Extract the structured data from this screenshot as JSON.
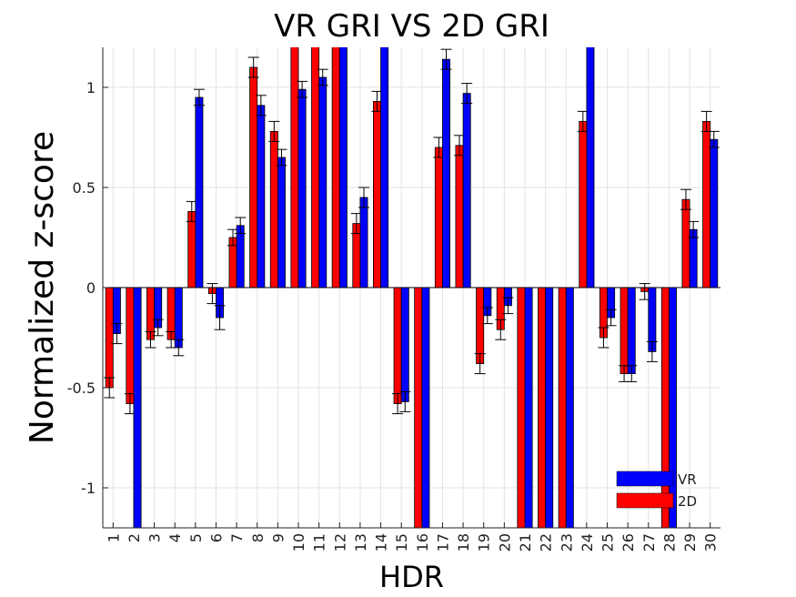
{
  "chart_data": {
    "type": "bar",
    "title": "VR GRI VS 2D GRI",
    "xlabel": "HDR",
    "ylabel": "Normalized z-score",
    "ylim": [
      -1.2,
      1.2
    ],
    "yticks": [
      -1,
      -0.5,
      0,
      0.5,
      1
    ],
    "ytick_labels": [
      "-1",
      "-0.5",
      "0",
      "0.5",
      "1"
    ],
    "grid": true,
    "legend_position": "bottom-right",
    "categories": [
      "1",
      "2",
      "3",
      "4",
      "5",
      "6",
      "7",
      "8",
      "9",
      "10",
      "11",
      "12",
      "13",
      "14",
      "15",
      "16",
      "17",
      "18",
      "19",
      "20",
      "21",
      "22",
      "23",
      "24",
      "25",
      "26",
      "27",
      "28",
      "29",
      "30"
    ],
    "series": [
      {
        "name": "2D",
        "color": "#ff0000",
        "values": [
          -0.5,
          -0.58,
          -0.26,
          -0.26,
          0.38,
          -0.03,
          0.25,
          1.1,
          0.78,
          1.3,
          1.3,
          1.3,
          0.32,
          0.93,
          -0.58,
          -1.3,
          0.7,
          0.71,
          -0.38,
          -0.21,
          -1.3,
          -1.3,
          -1.3,
          0.83,
          -0.25,
          -0.43,
          -0.02,
          -1.3,
          0.44,
          0.83
        ],
        "errors": [
          0.05,
          0.05,
          0.04,
          0.04,
          0.05,
          0.05,
          0.04,
          0.05,
          0.05,
          0,
          0,
          0,
          0.05,
          0.05,
          0.05,
          0,
          0.05,
          0.05,
          0.05,
          0.05,
          0,
          0,
          0.05,
          0.05,
          0.05,
          0.04,
          0.04,
          0,
          0.05,
          0.05
        ]
      },
      {
        "name": "VR",
        "color": "#0000ff",
        "values": [
          -0.23,
          -1.3,
          -0.2,
          -0.3,
          0.95,
          -0.15,
          0.31,
          0.91,
          0.65,
          0.99,
          1.05,
          1.3,
          0.45,
          1.3,
          -0.57,
          -1.3,
          1.14,
          0.97,
          -0.14,
          -0.09,
          -1.3,
          -1.3,
          -1.3,
          1.3,
          -0.15,
          -0.43,
          -0.32,
          -1.3,
          0.29,
          0.74
        ],
        "errors": [
          0.05,
          0,
          0.04,
          0.04,
          0.04,
          0.06,
          0.04,
          0.05,
          0.04,
          0.04,
          0.04,
          0,
          0.05,
          0.04,
          0.05,
          0,
          0.05,
          0.05,
          0.04,
          0.04,
          0,
          0,
          0,
          0.04,
          0.04,
          0.04,
          0.05,
          0,
          0.04,
          0.04
        ]
      }
    ],
    "legend_entries": [
      "VR",
      "2D"
    ]
  }
}
